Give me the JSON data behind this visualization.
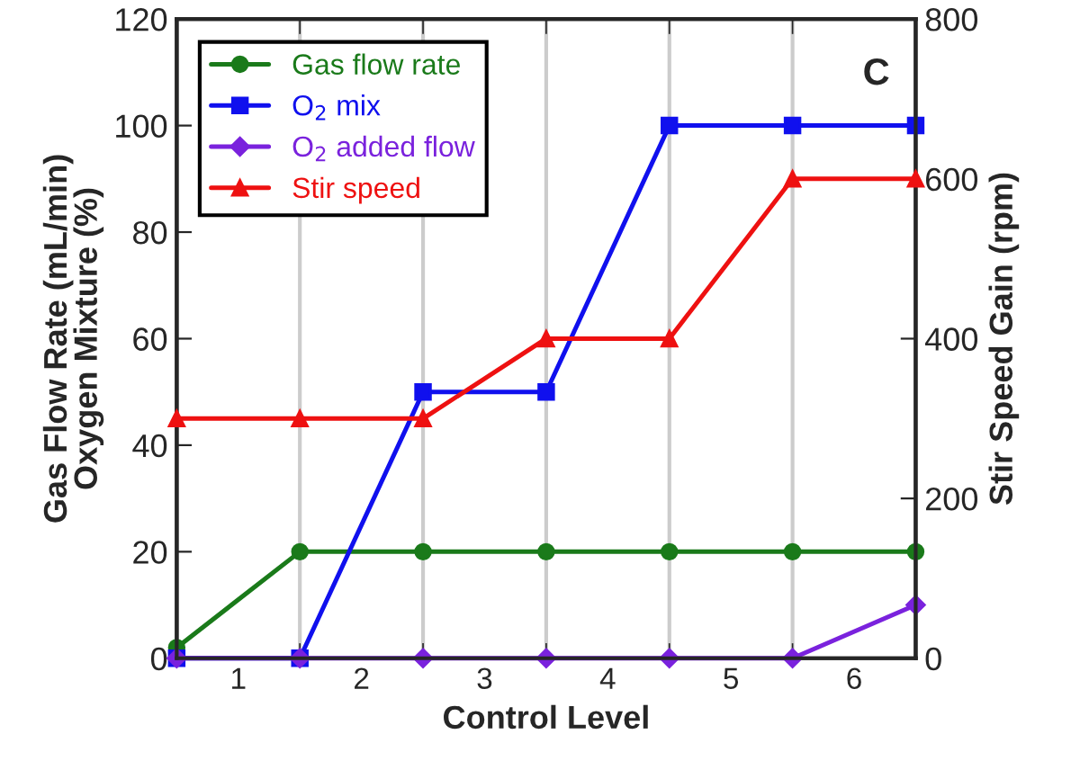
{
  "chart_data": {
    "type": "line",
    "xlabel": "Control Level",
    "ylabel": "Gas Flow Rate (mL/min)\nOxygen Mixture (%)",
    "y2label": "Stir Speed Gain (rpm)",
    "x": [
      0.5,
      1.5,
      2.5,
      3.5,
      4.5,
      5.5,
      6.5
    ],
    "xlim": [
      0.5,
      6.5
    ],
    "xticks": [
      {
        "value": 0.5,
        "label": null
      },
      {
        "value": 1,
        "label": "1"
      },
      {
        "value": 1.5,
        "label": null
      },
      {
        "value": 2,
        "label": "2"
      },
      {
        "value": 2.5,
        "label": null
      },
      {
        "value": 3,
        "label": "3"
      },
      {
        "value": 3.5,
        "label": null
      },
      {
        "value": 4,
        "label": "4"
      },
      {
        "value": 4.5,
        "label": null
      },
      {
        "value": 5,
        "label": "5"
      },
      {
        "value": 5.5,
        "label": null
      },
      {
        "value": 6,
        "label": "6"
      },
      {
        "value": 6.5,
        "label": null
      }
    ],
    "ylim": [
      0,
      120
    ],
    "yticks": [
      0,
      20,
      40,
      60,
      80,
      100,
      120
    ],
    "y2lim": [
      0,
      800
    ],
    "y2ticks": [
      0,
      200,
      400,
      600,
      800
    ],
    "grid": "x",
    "legend": "top left",
    "annotations": [
      "C"
    ],
    "series": [
      {
        "name": "Gas flow rate",
        "color": "#1a7a1a",
        "marker": "circle",
        "values": [
          2,
          20,
          20,
          20,
          20,
          20,
          20
        ]
      },
      {
        "name": "O$_{2}$ mix",
        "color": "#1010ee",
        "marker": "square",
        "values": [
          0,
          0,
          50,
          50,
          100,
          100,
          100
        ]
      },
      {
        "name": "O$_{2}$ added flow",
        "color": "#7a22dd",
        "marker": "diamond",
        "values": [
          0,
          0,
          0,
          0,
          0,
          0,
          10
        ]
      },
      {
        "name": "Stir speed",
        "color": "#ee1111",
        "marker": "triangle",
        "axis": "y2",
        "values": [
          300,
          300,
          300,
          400,
          400,
          600,
          600
        ]
      }
    ]
  }
}
